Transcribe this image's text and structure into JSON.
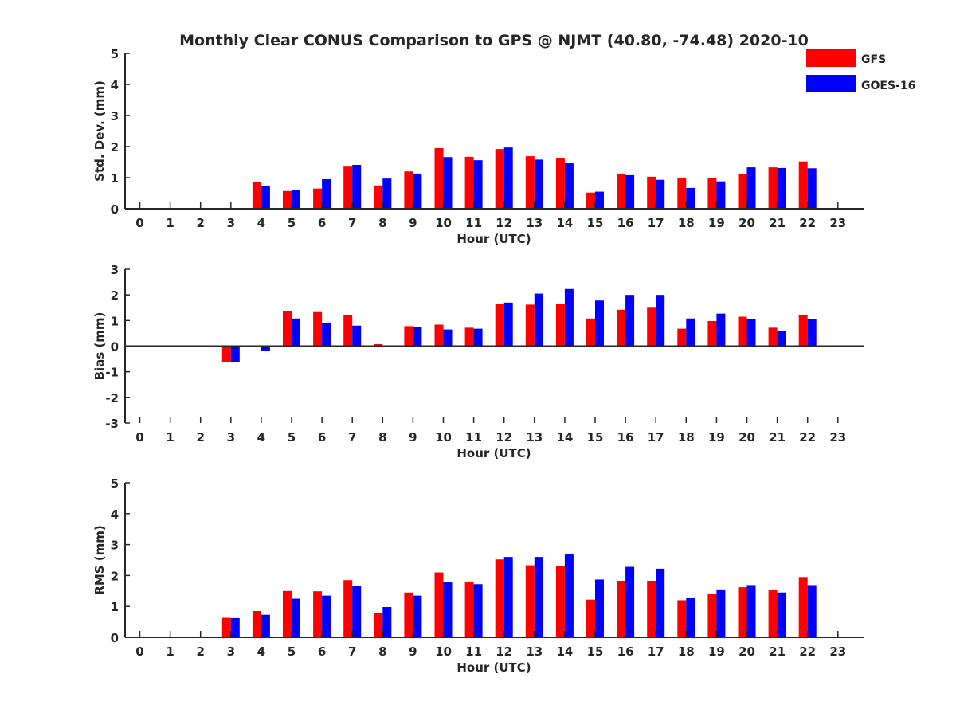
{
  "colors": {
    "gfs": "#ff0000",
    "goes": "#0000ff",
    "axis": "#262626"
  },
  "chart_data": {
    "title": "Monthly Clear CONUS Comparison to GPS @ NJMT (40.80, -74.48) 2020-10",
    "legend": {
      "placement": "top-right",
      "entries": [
        "GFS",
        "GOES-16"
      ]
    },
    "panels": [
      {
        "type": "bar",
        "ylabel": "Std. Dev. (mm)",
        "xlabel": "Hour (UTC)",
        "ylim": [
          0,
          5
        ],
        "yticks": [
          "0",
          "1",
          "2",
          "3",
          "4",
          "5"
        ],
        "x": [
          0,
          1,
          2,
          3,
          4,
          5,
          6,
          7,
          8,
          9,
          10,
          11,
          12,
          13,
          14,
          15,
          16,
          17,
          18,
          19,
          20,
          21,
          22,
          23
        ],
        "xtick_labels": [
          "0",
          "1",
          "2",
          "3",
          "4",
          "5",
          "6",
          "7",
          "8",
          "9",
          "10",
          "11",
          "12",
          "13",
          "14",
          "15",
          "16",
          "17",
          "18",
          "19",
          "20",
          "21",
          "22",
          "23"
        ],
        "series": [
          {
            "name": "GFS",
            "values": [
              null,
              null,
              null,
              null,
              0.85,
              0.57,
              0.65,
              1.38,
              0.75,
              1.2,
              1.95,
              1.67,
              1.92,
              1.69,
              1.64,
              0.52,
              1.13,
              1.03,
              1.0,
              1.0,
              1.13,
              1.33,
              1.52,
              null
            ]
          },
          {
            "name": "GOES-16",
            "values": [
              null,
              null,
              null,
              null,
              0.73,
              0.6,
              0.95,
              1.41,
              0.97,
              1.13,
              1.66,
              1.56,
              1.97,
              1.58,
              1.46,
              0.55,
              1.08,
              0.93,
              0.67,
              0.88,
              1.33,
              1.31,
              1.3,
              null
            ]
          }
        ]
      },
      {
        "type": "bar",
        "ylabel": "Bias (mm)",
        "xlabel": "Hour (UTC)",
        "ylim": [
          -3,
          3
        ],
        "yticks": [
          "-3",
          "-2",
          "-1",
          "0",
          "1",
          "2",
          "3"
        ],
        "x": [
          0,
          1,
          2,
          3,
          4,
          5,
          6,
          7,
          8,
          9,
          10,
          11,
          12,
          13,
          14,
          15,
          16,
          17,
          18,
          19,
          20,
          21,
          22,
          23
        ],
        "xtick_labels": [
          "0",
          "1",
          "2",
          "3",
          "4",
          "5",
          "6",
          "7",
          "8",
          "9",
          "10",
          "11",
          "12",
          "13",
          "14",
          "15",
          "16",
          "17",
          "18",
          "19",
          "20",
          "21",
          "22",
          "23"
        ],
        "series": [
          {
            "name": "GFS",
            "values": [
              null,
              null,
              null,
              -0.62,
              -0.03,
              1.38,
              1.33,
              1.2,
              0.08,
              0.78,
              0.84,
              0.72,
              1.65,
              1.62,
              1.65,
              1.08,
              1.42,
              1.53,
              0.68,
              0.98,
              1.15,
              0.72,
              1.23,
              null
            ]
          },
          {
            "name": "GOES-16",
            "values": [
              null,
              null,
              null,
              -0.62,
              -0.18,
              1.08,
              0.92,
              0.8,
              0.02,
              0.74,
              0.65,
              0.68,
              1.7,
              2.05,
              2.23,
              1.78,
              2.0,
              2.0,
              1.08,
              1.27,
              1.05,
              0.59,
              1.05,
              null
            ]
          }
        ]
      },
      {
        "type": "bar",
        "ylabel": "RMS (mm)",
        "xlabel": "Hour (UTC)",
        "ylim": [
          0,
          5
        ],
        "yticks": [
          "0",
          "1",
          "2",
          "3",
          "4",
          "5"
        ],
        "x": [
          0,
          1,
          2,
          3,
          4,
          5,
          6,
          7,
          8,
          9,
          10,
          11,
          12,
          13,
          14,
          15,
          16,
          17,
          18,
          19,
          20,
          21,
          22,
          23
        ],
        "xtick_labels": [
          "0",
          "1",
          "2",
          "3",
          "4",
          "5",
          "6",
          "7",
          "8",
          "9",
          "10",
          "11",
          "12",
          "13",
          "14",
          "15",
          "16",
          "17",
          "18",
          "19",
          "20",
          "21",
          "22",
          "23"
        ],
        "series": [
          {
            "name": "GFS",
            "values": [
              null,
              null,
              null,
              0.63,
              0.85,
              1.5,
              1.49,
              1.85,
              0.78,
              1.45,
              2.1,
              1.8,
              2.52,
              2.33,
              2.31,
              1.22,
              1.83,
              1.83,
              1.2,
              1.41,
              1.62,
              1.52,
              1.95,
              null
            ]
          },
          {
            "name": "GOES-16",
            "values": [
              null,
              null,
              null,
              0.62,
              0.73,
              1.25,
              1.35,
              1.65,
              0.98,
              1.35,
              1.8,
              1.72,
              2.6,
              2.6,
              2.68,
              1.87,
              2.28,
              2.22,
              1.27,
              1.55,
              1.69,
              1.45,
              1.69,
              null
            ]
          }
        ]
      }
    ]
  }
}
